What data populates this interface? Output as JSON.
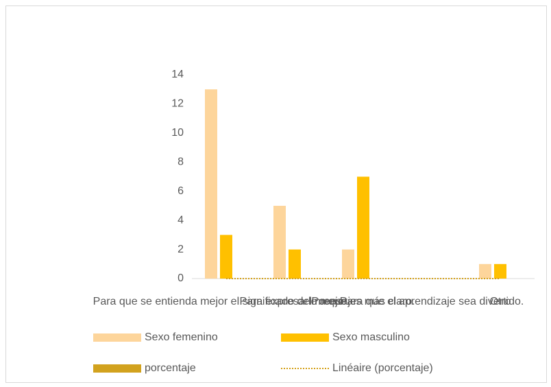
{
  "chart_data": {
    "type": "bar",
    "categories": [
      "Para que se entienda mejor el significado del mensaje.",
      "Para expresarlo mejor.",
      "Porque es más claro.",
      "Para que el aprendizaje sea divertido.",
      "Otro"
    ],
    "series": [
      {
        "name": "Sexo femenino",
        "color": "#fdd59b",
        "values": [
          13,
          5,
          2,
          0,
          1
        ]
      },
      {
        "name": "Sexo masculino",
        "color": "#ffc000",
        "values": [
          3,
          2,
          7,
          0,
          1
        ]
      },
      {
        "name": "porcentaje",
        "color": "#d2a21e",
        "values": [
          0,
          0,
          0,
          0,
          0
        ]
      }
    ],
    "trendline": {
      "name": "Linéaire (porcentaje)",
      "color": "#d4a017"
    },
    "ylim": [
      0,
      14
    ],
    "yticks": [
      0,
      2,
      4,
      6,
      8,
      10,
      12,
      14
    ],
    "grid": false
  }
}
